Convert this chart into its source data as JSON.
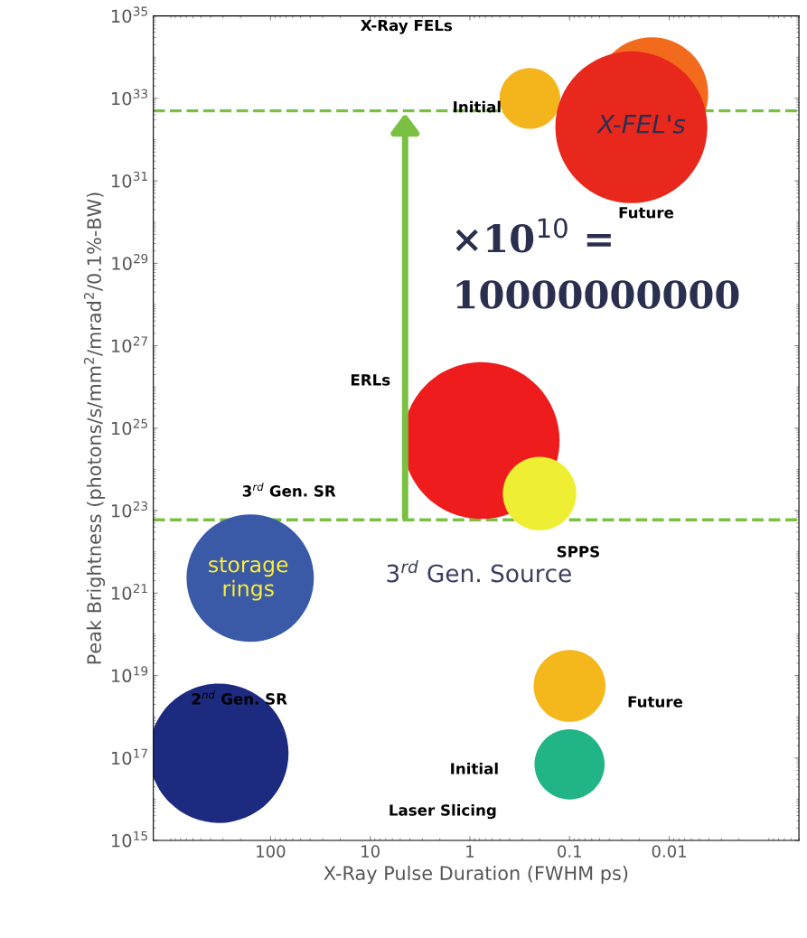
{
  "chart_data": {
    "type": "bubble",
    "xlabel": "X-Ray Pulse Duration (FWHM ps)",
    "ylabel": "Peak Brightness (photons/s/mm$^{2}$/mrad$^{2}$/0.1%-BW)",
    "log": "xy",
    "xlim": [
      1500,
      0.0005
    ],
    "xticks": [
      100,
      10,
      1,
      0.1,
      0.01
    ],
    "ylim": [
      1000000000000000.0,
      1e+35
    ],
    "yticks": [
      {
        "value": 1000000000000000.0,
        "label": "10$^{15}$"
      },
      {
        "value": 1e+17,
        "label": "10$^{17}$"
      },
      {
        "value": 1e+19,
        "label": "10$^{19}$"
      },
      {
        "value": 1e+21,
        "label": "10$^{21}$"
      },
      {
        "value": 1e+23,
        "label": "10$^{23}$"
      },
      {
        "value": 1e+25,
        "label": "10$^{25}$"
      },
      {
        "value": 1e+27,
        "label": "10$^{27}$"
      },
      {
        "value": 1e+29,
        "label": "10$^{29}$"
      },
      {
        "value": 1e+31,
        "label": "10$^{31}$"
      },
      {
        "value": 1e+33,
        "label": "10$^{33}$"
      },
      {
        "value": 1e+35,
        "label": "10$^{35}$"
      }
    ],
    "grid": false,
    "series": [
      {
        "x": [
          330,
          160,
          0.77,
          0.2,
          0.1,
          0.1,
          0.25,
          0.015,
          0.024
        ],
        "values": [
          1.3e+17,
          2.3e+21,
          5e+24,
          2.6e+23,
          5.6e+18,
          7e+16,
          1e+33,
          1.3e+33,
          2e+32
        ],
        "sizes": [
          0.79,
          0.66,
          1,
          0.22,
          0.21,
          0.2,
          0.15,
          0.52,
          0.94
        ],
        "colors": [
          "#1c2a80",
          "#3a5aa8",
          "#ee1c1c",
          "#eeee33",
          "#f5b81c",
          "#20b486",
          "#f4b41c",
          "#f26a1c",
          "#e8281c"
        ]
      }
    ],
    "ref_lines": [
      {
        "axis": "y",
        "value": 5e+32,
        "color": "#7ac143",
        "line_style": "dashed"
      },
      {
        "axis": "y",
        "value": 6e+22,
        "color": "#7ac143",
        "line_style": "dashed"
      }
    ],
    "annotations": [
      "X-Ray FELs",
      "Initial",
      "X-FEL's",
      "Future",
      "×10$^{10}$ =",
      "10000000000",
      "ERLs",
      "3$^{rd}$ Gen. SR",
      "SPPS",
      "3$^{rd}$ Gen. Source",
      "storage rings",
      "2$^{nd}$ Gen. SR",
      "Future",
      "Initial",
      "Laser Slicing"
    ]
  }
}
